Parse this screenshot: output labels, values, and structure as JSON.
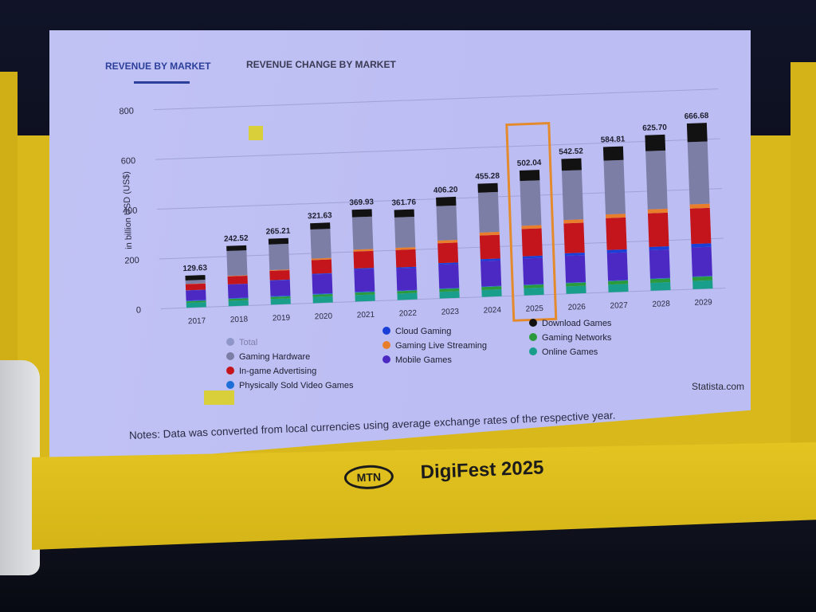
{
  "banner": {
    "logo_text": "MTN",
    "event_name": "DigiFest 2025"
  },
  "tabs": {
    "active": "REVENUE BY MARKET",
    "inactive": "REVENUE CHANGE BY MARKET"
  },
  "source": "Statista.com",
  "notes": "Notes: Data was converted from local currencies using average exchange rates of the respective year.",
  "colors": {
    "Total": "#8f96c9",
    "Gaming Hardware": "#7c7ea6",
    "In-game Advertising": "#c4141c",
    "Physically Sold Video Games": "#1e6ed8",
    "Cloud Gaming": "#1a3fd6",
    "Gaming Live Streaming": "#e87d2c",
    "Mobile Games": "#4b29c2",
    "Download Games": "#121212",
    "Gaming Networks": "#2b9a3c",
    "Online Games": "#1a9e8c",
    "highlight": "#e38a2d"
  },
  "chart_data": {
    "type": "bar",
    "stacked": true,
    "title": "",
    "xlabel": "",
    "ylabel": "in billion USD (US$)",
    "ylim": [
      0,
      800
    ],
    "yticks": [
      0,
      200,
      400,
      600,
      800
    ],
    "grid": true,
    "legend_position": "bottom",
    "highlighted_category": "2025",
    "categories": [
      "2017",
      "2018",
      "2019",
      "2020",
      "2021",
      "2022",
      "2023",
      "2024",
      "2025",
      "2026",
      "2027",
      "2028",
      "2029"
    ],
    "totals": [
      "129.63",
      "242.52",
      "265.21",
      "321.63",
      "369.93",
      "361.76",
      "406.20",
      "455.28",
      "502.04",
      "542.52",
      "584.81",
      "625.70",
      "666.68"
    ],
    "legend": [
      "Total",
      "Gaming Hardware",
      "In-game Advertising",
      "Physically Sold Video Games",
      "Cloud Gaming",
      "Gaming Live Streaming",
      "Mobile Games",
      "Download Games",
      "Gaming Networks",
      "Online Games"
    ],
    "series": [
      {
        "name": "Online Games",
        "values": [
          20,
          22,
          23,
          25,
          26,
          26,
          27,
          28,
          29,
          30,
          31,
          32,
          33
        ]
      },
      {
        "name": "Gaming Networks",
        "values": [
          6,
          7,
          8,
          9,
          10,
          10,
          11,
          12,
          12,
          13,
          14,
          15,
          16
        ]
      },
      {
        "name": "Physically Sold Video Games",
        "values": [
          3,
          3,
          3,
          3,
          3,
          2,
          2,
          2,
          2,
          2,
          2,
          2,
          2
        ]
      },
      {
        "name": "Mobile Games",
        "values": [
          40,
          55,
          62,
          78,
          90,
          88,
          96,
          102,
          105,
          108,
          111,
          114,
          117
        ]
      },
      {
        "name": "Cloud Gaming",
        "values": [
          1,
          1,
          2,
          3,
          4,
          5,
          6,
          8,
          9,
          10,
          12,
          13,
          14
        ]
      },
      {
        "name": "In-game Advertising",
        "values": [
          25,
          32,
          38,
          55,
          68,
          70,
          80,
          95,
          110,
          120,
          128,
          135,
          142
        ]
      },
      {
        "name": "Gaming Live Streaming",
        "values": [
          1,
          2,
          3,
          6,
          8,
          9,
          11,
          12,
          13,
          14,
          15,
          16,
          17
        ]
      },
      {
        "name": "Gaming Hardware",
        "values": [
          14,
          100,
          103,
          117,
          130,
          122,
          138,
          160,
          180,
          198,
          216,
          234,
          250
        ]
      },
      {
        "name": "Download Games",
        "values": [
          19,
          20,
          23,
          25,
          30,
          30,
          35,
          36,
          42,
          47,
          55,
          64,
          75
        ]
      }
    ]
  }
}
